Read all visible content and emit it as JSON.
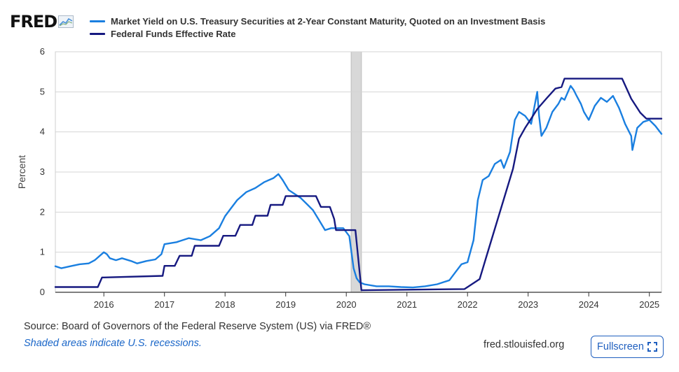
{
  "logo": {
    "text": "FRED"
  },
  "legend": [
    {
      "label": "Market Yield on U.S. Treasury Securities at 2-Year Constant Maturity, Quoted on an Investment Basis",
      "color": "#1a7fe0"
    },
    {
      "label": "Federal Funds Effective Rate",
      "color": "#161980"
    }
  ],
  "footer": {
    "source": "Source: Board of Governors of the Federal Reserve System (US) via FRED®",
    "note": "Shaded areas indicate U.S. recessions.",
    "site": "fred.stlouisfed.org",
    "fullscreen_label": "Fullscreen"
  },
  "chart_data": {
    "type": "line",
    "title": "",
    "xlabel": "",
    "ylabel": "Percent",
    "xlim": [
      2015.2,
      2025.2
    ],
    "ylim": [
      0,
      6
    ],
    "y_ticks": [
      0,
      1,
      2,
      3,
      4,
      5,
      6
    ],
    "x_ticks": [
      2016,
      2017,
      2018,
      2019,
      2020,
      2021,
      2022,
      2023,
      2024,
      2025
    ],
    "grid": true,
    "recessions": [
      [
        2020.08,
        2020.25
      ]
    ],
    "series": [
      {
        "name": "Market Yield on U.S. Treasury Securities at 2-Year Constant Maturity, Quoted on an Investment Basis",
        "color": "#1a7fe0",
        "x": [
          2015.2,
          2015.3,
          2015.45,
          2015.6,
          2015.75,
          2015.85,
          2016.0,
          2016.05,
          2016.1,
          2016.2,
          2016.3,
          2016.45,
          2016.55,
          2016.7,
          2016.85,
          2016.95,
          2017.0,
          2017.2,
          2017.4,
          2017.6,
          2017.75,
          2017.9,
          2018.0,
          2018.1,
          2018.2,
          2018.35,
          2018.5,
          2018.65,
          2018.8,
          2018.88,
          2018.95,
          2019.05,
          2019.15,
          2019.25,
          2019.35,
          2019.45,
          2019.55,
          2019.65,
          2019.75,
          2019.85,
          2019.95,
          2020.05,
          2020.12,
          2020.17,
          2020.22,
          2020.3,
          2020.5,
          2020.7,
          2020.9,
          2021.1,
          2021.3,
          2021.5,
          2021.7,
          2021.8,
          2021.9,
          2022.0,
          2022.1,
          2022.17,
          2022.25,
          2022.35,
          2022.45,
          2022.55,
          2022.6,
          2022.7,
          2022.78,
          2022.85,
          2022.95,
          2023.05,
          2023.15,
          2023.18,
          2023.22,
          2023.3,
          2023.4,
          2023.5,
          2023.55,
          2023.6,
          2023.7,
          2023.75,
          2023.8,
          2023.87,
          2023.92,
          2024.0,
          2024.1,
          2024.2,
          2024.3,
          2024.4,
          2024.5,
          2024.55,
          2024.6,
          2024.7,
          2024.72,
          2024.8,
          2024.9,
          2025.0,
          2025.1,
          2025.2
        ],
        "values": [
          0.65,
          0.6,
          0.65,
          0.7,
          0.72,
          0.8,
          1.0,
          0.95,
          0.85,
          0.8,
          0.85,
          0.78,
          0.72,
          0.78,
          0.82,
          0.95,
          1.2,
          1.25,
          1.35,
          1.3,
          1.4,
          1.6,
          1.9,
          2.1,
          2.3,
          2.5,
          2.6,
          2.75,
          2.85,
          2.95,
          2.8,
          2.55,
          2.45,
          2.35,
          2.2,
          2.05,
          1.8,
          1.55,
          1.6,
          1.6,
          1.6,
          1.4,
          0.6,
          0.35,
          0.25,
          0.2,
          0.15,
          0.15,
          0.13,
          0.12,
          0.15,
          0.2,
          0.3,
          0.5,
          0.7,
          0.75,
          1.3,
          2.3,
          2.8,
          2.9,
          3.2,
          3.3,
          3.1,
          3.5,
          4.3,
          4.5,
          4.4,
          4.2,
          5.0,
          4.4,
          3.9,
          4.1,
          4.5,
          4.7,
          4.85,
          4.8,
          5.15,
          5.05,
          4.9,
          4.7,
          4.5,
          4.3,
          4.65,
          4.85,
          4.75,
          4.9,
          4.6,
          4.4,
          4.2,
          3.9,
          3.55,
          4.1,
          4.25,
          4.3,
          4.15,
          3.95
        ]
      },
      {
        "name": "Federal Funds Effective Rate",
        "color": "#161980",
        "x": [
          2015.2,
          2015.9,
          2015.97,
          2016.0,
          2016.97,
          2017.0,
          2017.17,
          2017.25,
          2017.45,
          2017.5,
          2017.9,
          2017.97,
          2018.17,
          2018.25,
          2018.45,
          2018.5,
          2018.7,
          2018.75,
          2018.95,
          2019.0,
          2019.5,
          2019.58,
          2019.73,
          2019.8,
          2019.83,
          2019.9,
          2020.15,
          2020.25,
          2021.95,
          2022.2,
          2022.3,
          2022.45,
          2022.6,
          2022.75,
          2022.85,
          2022.95,
          2023.05,
          2023.15,
          2023.3,
          2023.45,
          2023.55,
          2023.6,
          2024.55,
          2024.7,
          2024.85,
          2024.95,
          2025.2
        ],
        "values": [
          0.13,
          0.13,
          0.37,
          0.37,
          0.41,
          0.66,
          0.66,
          0.91,
          0.91,
          1.16,
          1.16,
          1.41,
          1.41,
          1.68,
          1.68,
          1.91,
          1.91,
          2.18,
          2.18,
          2.4,
          2.4,
          2.13,
          2.13,
          1.83,
          1.55,
          1.55,
          1.55,
          0.05,
          0.08,
          0.33,
          0.83,
          1.58,
          2.33,
          3.08,
          3.83,
          4.1,
          4.33,
          4.57,
          4.83,
          5.08,
          5.12,
          5.33,
          5.33,
          4.83,
          4.48,
          4.33,
          4.33
        ]
      }
    ]
  }
}
